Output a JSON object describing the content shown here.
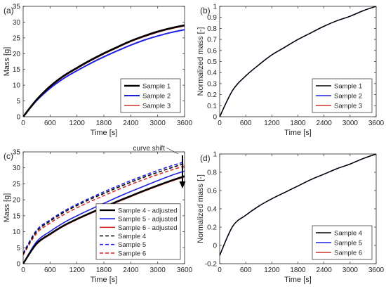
{
  "chart_data": [
    {
      "panel": "(a)",
      "type": "line",
      "xlabel": "Time [s]",
      "ylabel": "Mass [g]",
      "xlim": [
        0,
        3600
      ],
      "ylim": [
        0,
        35
      ],
      "xticks": [
        0,
        600,
        1200,
        1800,
        2400,
        3000,
        3600
      ],
      "yticks": [
        0,
        5,
        10,
        15,
        20,
        25,
        30,
        35
      ],
      "legend_position": "bottom-right",
      "x": [
        0,
        300,
        600,
        900,
        1200,
        1500,
        1800,
        2100,
        2400,
        2700,
        3000,
        3300,
        3600
      ],
      "series": [
        {
          "name": "Sample 1",
          "color": "#000000",
          "width": 2.6,
          "dash": "solid",
          "values": [
            0,
            5.4,
            9.6,
            12.9,
            15.5,
            17.9,
            20.1,
            22.1,
            24.0,
            25.6,
            27.0,
            28.1,
            29.0
          ]
        },
        {
          "name": "Sample 2",
          "color": "#2020e0",
          "width": 2.0,
          "dash": "solid",
          "values": [
            0,
            5.1,
            9.0,
            12.1,
            14.6,
            16.9,
            19.0,
            20.9,
            22.7,
            24.3,
            25.6,
            26.7,
            27.6
          ]
        },
        {
          "name": "Sample 3",
          "color": "#d0302a",
          "width": 1.6,
          "dash": "solid",
          "values": [
            0,
            5.3,
            9.4,
            12.7,
            15.3,
            17.7,
            19.9,
            21.9,
            23.8,
            25.4,
            26.8,
            27.9,
            28.8
          ]
        }
      ]
    },
    {
      "panel": "(b)",
      "type": "line",
      "xlabel": "Time [s]",
      "ylabel": "Normalized mass [-]",
      "xlim": [
        0,
        3600
      ],
      "ylim": [
        0,
        1
      ],
      "xticks": [
        0,
        600,
        1200,
        1800,
        2400,
        3000,
        3600
      ],
      "yticks": [
        0,
        0.1,
        0.2,
        0.3,
        0.4,
        0.5,
        0.6,
        0.7,
        0.8,
        0.9,
        1
      ],
      "legend_position": "bottom-right",
      "x": [
        0,
        300,
        600,
        900,
        1200,
        1500,
        1800,
        2100,
        2400,
        2700,
        3000,
        3300,
        3600
      ],
      "series": [
        {
          "name": "Sample 1",
          "color": "#000000",
          "width": 1.4,
          "dash": "solid",
          "values": [
            0,
            0.24,
            0.37,
            0.47,
            0.56,
            0.63,
            0.7,
            0.76,
            0.82,
            0.87,
            0.91,
            0.96,
            1.0
          ]
        },
        {
          "name": "Sample 2",
          "color": "#2020e0",
          "width": 1.4,
          "dash": "solid",
          "values": [
            0,
            0.24,
            0.37,
            0.47,
            0.56,
            0.63,
            0.7,
            0.76,
            0.82,
            0.87,
            0.91,
            0.96,
            1.0
          ]
        },
        {
          "name": "Sample 3",
          "color": "#d0302a",
          "width": 1.4,
          "dash": "solid",
          "values": [
            0,
            0.24,
            0.37,
            0.47,
            0.56,
            0.63,
            0.7,
            0.76,
            0.82,
            0.87,
            0.91,
            0.96,
            1.0
          ]
        }
      ]
    },
    {
      "panel": "(c)",
      "type": "line",
      "xlabel": "Time [s]",
      "ylabel": "Mass [g]",
      "xlim": [
        0,
        3600
      ],
      "ylim": [
        0,
        35
      ],
      "xticks": [
        0,
        600,
        1200,
        1800,
        2400,
        3000,
        3600
      ],
      "yticks": [
        0,
        5,
        10,
        15,
        20,
        25,
        30,
        35
      ],
      "legend_position": "bottom-right",
      "annotation": "curve shift",
      "x": [
        0,
        300,
        600,
        900,
        1200,
        1500,
        1800,
        2100,
        2400,
        2700,
        3000,
        3300,
        3600
      ],
      "series": [
        {
          "name": "Sample 4 - adjusted",
          "color": "#000000",
          "width": 2.4,
          "dash": "solid",
          "values": [
            0,
            6.3,
            9.3,
            11.9,
            14.0,
            15.9,
            17.7,
            19.5,
            21.2,
            22.9,
            24.5,
            26.0,
            27.4
          ]
        },
        {
          "name": "Sample 5 - adjusted",
          "color": "#2020e0",
          "width": 1.6,
          "dash": "solid",
          "values": [
            0,
            6.9,
            10.1,
            12.8,
            15.0,
            17.0,
            18.9,
            20.8,
            22.6,
            24.3,
            26.0,
            27.6,
            29.0
          ]
        },
        {
          "name": "Sample 6 - adjusted",
          "color": "#d0302a",
          "width": 1.6,
          "dash": "solid",
          "values": [
            0,
            6.1,
            9.1,
            11.7,
            13.8,
            15.7,
            17.5,
            19.3,
            21.0,
            22.7,
            24.3,
            25.8,
            27.2
          ]
        },
        {
          "name": "Sample 4",
          "color": "#000000",
          "width": 1.6,
          "dash": "dashed",
          "values": [
            3.0,
            10.1,
            13.3,
            16.0,
            18.2,
            20.2,
            22.0,
            23.8,
            25.5,
            27.1,
            28.6,
            30.0,
            31.4
          ]
        },
        {
          "name": "Sample 5",
          "color": "#2020e0",
          "width": 1.6,
          "dash": "dashed",
          "values": [
            3.3,
            10.5,
            13.7,
            16.4,
            18.6,
            20.6,
            22.5,
            24.3,
            26.0,
            27.6,
            29.2,
            30.6,
            31.9
          ]
        },
        {
          "name": "Sample 6",
          "color": "#d0302a",
          "width": 1.6,
          "dash": "dashed",
          "values": [
            2.7,
            9.5,
            12.7,
            15.3,
            17.5,
            19.5,
            21.3,
            23.1,
            24.8,
            26.4,
            27.9,
            29.3,
            30.6
          ]
        }
      ]
    },
    {
      "panel": "(d)",
      "type": "line",
      "xlabel": "Time [s]",
      "ylabel": "Normalized mass [-]",
      "xlim": [
        0,
        3600
      ],
      "ylim": [
        -0.2,
        1
      ],
      "xticks": [
        0,
        600,
        1200,
        1800,
        2400,
        3000,
        3600
      ],
      "yticks": [
        -0.2,
        0,
        0.2,
        0.4,
        0.6,
        0.8,
        1
      ],
      "legend_position": "bottom-right",
      "x": [
        0,
        300,
        600,
        900,
        1200,
        1500,
        1800,
        2100,
        2400,
        2700,
        3000,
        3300,
        3600
      ],
      "series": [
        {
          "name": "Sample 4",
          "color": "#000000",
          "width": 1.4,
          "dash": "solid",
          "values": [
            -0.11,
            0.21,
            0.33,
            0.43,
            0.51,
            0.58,
            0.65,
            0.72,
            0.78,
            0.84,
            0.89,
            0.95,
            1.0
          ]
        },
        {
          "name": "Sample 5",
          "color": "#2020e0",
          "width": 1.4,
          "dash": "solid",
          "values": [
            -0.11,
            0.21,
            0.33,
            0.43,
            0.51,
            0.58,
            0.65,
            0.72,
            0.78,
            0.84,
            0.89,
            0.95,
            1.0
          ]
        },
        {
          "name": "Sample 6",
          "color": "#d0302a",
          "width": 1.4,
          "dash": "solid",
          "values": [
            -0.11,
            0.21,
            0.33,
            0.43,
            0.51,
            0.58,
            0.65,
            0.72,
            0.78,
            0.84,
            0.89,
            0.95,
            1.0
          ]
        }
      ]
    }
  ]
}
